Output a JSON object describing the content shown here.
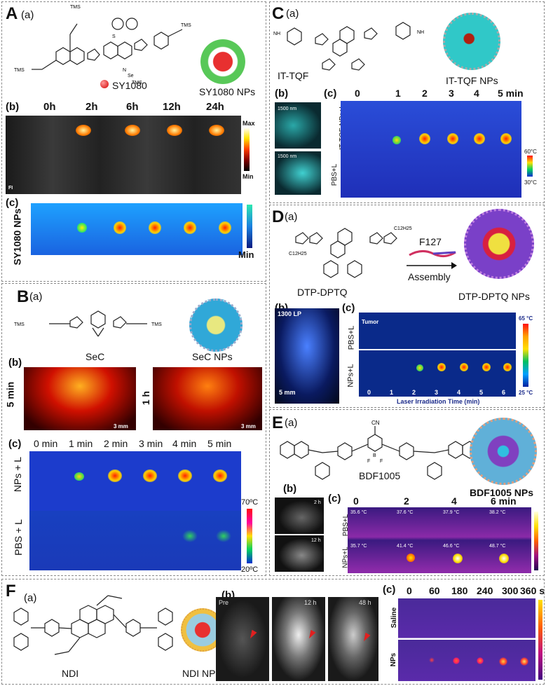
{
  "panel_A": {
    "letter": "A",
    "sub_a": "(a)",
    "sub_b": "(b)",
    "sub_c": "(c)",
    "compound": "SY1080",
    "nps": "SY1080 NPs",
    "times": [
      "0h",
      "2h",
      "6h",
      "12h",
      "24h"
    ],
    "bar_max": "Max",
    "bar_min": "Min",
    "fi": "FI",
    "row_label": "SY1080 NPs",
    "min2": "Min",
    "tms": [
      "TMS",
      "TMS",
      "TMS",
      "TMS"
    ],
    "se": "Se",
    "s": "S",
    "n": "N"
  },
  "panel_B": {
    "letter": "B",
    "sub_a": "(a)",
    "sub_b": "(b)",
    "sub_c": "(c)",
    "compound": "SeC",
    "nps": "SeC NPs",
    "time_left": "5 min",
    "time_right": "1 h",
    "scale": "3 mm",
    "times": [
      "0 min",
      "1 min",
      "2 min",
      "3 min",
      "4 min",
      "5 min"
    ],
    "row1": "NPs + L",
    "row2": "PBS + L",
    "temp_max": "70ºC",
    "temp_min": "20ºC",
    "tms": [
      "TMS",
      "TMS"
    ]
  },
  "panel_C": {
    "letter": "C",
    "sub_a": "(a)",
    "sub_b": "(b)",
    "sub_c": "(c)",
    "compound": "IT-TQF",
    "nps": "IT-TQF NPs",
    "nm1": "1500 nm",
    "nm2": "1500 nm",
    "times": [
      "0",
      "1",
      "2",
      "3",
      "4",
      "5 min"
    ],
    "row1": "IT-TQF NPs+L",
    "row2": "PBS+L",
    "temp_max": "60°C",
    "temp_min": "30°C",
    "nh": "NH"
  },
  "panel_D": {
    "letter": "D",
    "sub_a": "(a)",
    "sub_b": "(b)",
    "sub_c": "(c)",
    "compound": "DTP-DPTQ",
    "nps": "DTP-DPTQ NPs",
    "f127": "F127",
    "assembly": "Assembly",
    "lp": "1300 LP",
    "scale": "5 mm",
    "tumor": "Tumor",
    "row1": "PBS+L",
    "row2": "NPs+L",
    "times": [
      "0",
      "1",
      "2",
      "3",
      "4",
      "5",
      "6"
    ],
    "axis": "Laser Irradiation Time (min)",
    "temp_max": "65 °C",
    "temp_min": "25 °C",
    "alkyl": "C12H25"
  },
  "panel_E": {
    "letter": "E",
    "sub_a": "(a)",
    "sub_b": "(b)",
    "sub_c": "(c)",
    "compound": "BDF1005",
    "nps": "BDF1005 NPs",
    "times": [
      "0",
      "2",
      "4",
      "6 min"
    ],
    "img_b1": "2 h",
    "img_b2": "12 h",
    "row1": "PBS+L",
    "row2": "NPs+L",
    "temps_row1": [
      "35.6 °C",
      "37.6 °C",
      "37.9 °C",
      "38.2 °C"
    ],
    "temps_row2": [
      "35.7 °C",
      "41.4 °C",
      "46.6 °C",
      "48.7 °C"
    ],
    "cn": "CN",
    "bf": "B",
    "f1": "F",
    "f2": "F"
  },
  "panel_F": {
    "letter": "F",
    "sub_a": "(a)",
    "sub_b": "(b)",
    "sub_c": "(c)",
    "compound": "NDI",
    "nps": "NDI NPs",
    "imgs": [
      "Pre",
      "12 h",
      "48 h"
    ],
    "times": [
      "0",
      "60",
      "180",
      "240",
      "300",
      "360 s"
    ],
    "row1": "Saline",
    "row2": "NPs"
  },
  "colors": {
    "dashed_border": "#8a8a8a",
    "thermal_blue": "#1f3fc8",
    "fluor_cyan": "#3fc8d8",
    "rainbow_top": "#e8301c",
    "purple_bg": "#4a1b8a"
  }
}
